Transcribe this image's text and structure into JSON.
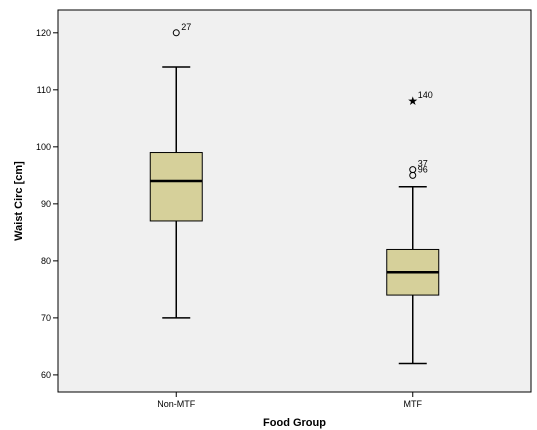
{
  "chart_data": {
    "type": "boxplot",
    "xlabel": "Food Group",
    "ylabel": "Waist Circ [cm]",
    "ylim": [
      57,
      124
    ],
    "yticks": [
      60,
      70,
      80,
      90,
      100,
      110,
      120
    ],
    "categories": [
      "Non-MTF",
      "MTF"
    ],
    "boxes": [
      {
        "category": "Non-MTF",
        "min": 70,
        "q1": 87,
        "median": 94,
        "q3": 99,
        "max": 114,
        "outliers": [
          {
            "label": "27",
            "value": 120,
            "marker": "circle"
          }
        ]
      },
      {
        "category": "MTF",
        "min": 62,
        "q1": 74,
        "median": 78,
        "q3": 82,
        "max": 93,
        "outliers": [
          {
            "label": "140",
            "value": 108,
            "marker": "star"
          },
          {
            "label": "37",
            "value": 96,
            "marker": "circle"
          },
          {
            "label": "96",
            "value": 95,
            "marker": "circle"
          }
        ]
      }
    ],
    "colors": {
      "plot_background": "#f0f0f0",
      "box_fill": "#d6d09a",
      "stroke": "#000000"
    },
    "grid": false,
    "legend": "none"
  }
}
